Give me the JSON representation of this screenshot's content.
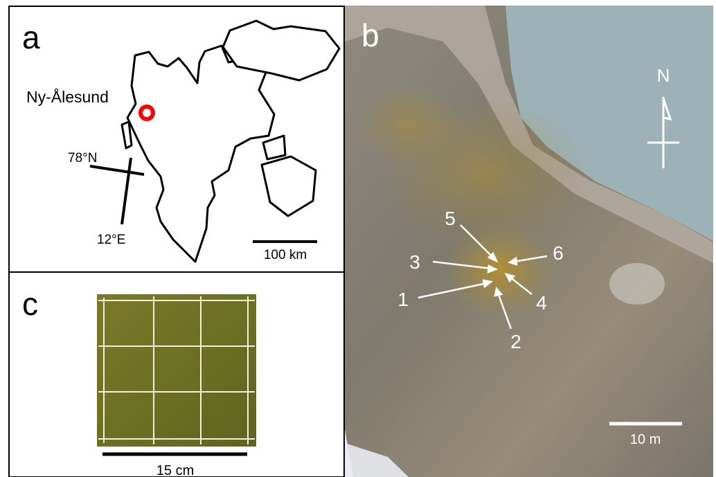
{
  "panels": {
    "a": {
      "label": "a",
      "place": "Ny-Ålesund",
      "latitude": "78°N",
      "longitude": "12°E",
      "scale": "100 km"
    },
    "b": {
      "label": "b",
      "north": "N",
      "points": [
        "1",
        "2",
        "3",
        "4",
        "5",
        "6"
      ],
      "scale": "10 m"
    },
    "c": {
      "label": "c",
      "scale": "15 cm"
    }
  }
}
